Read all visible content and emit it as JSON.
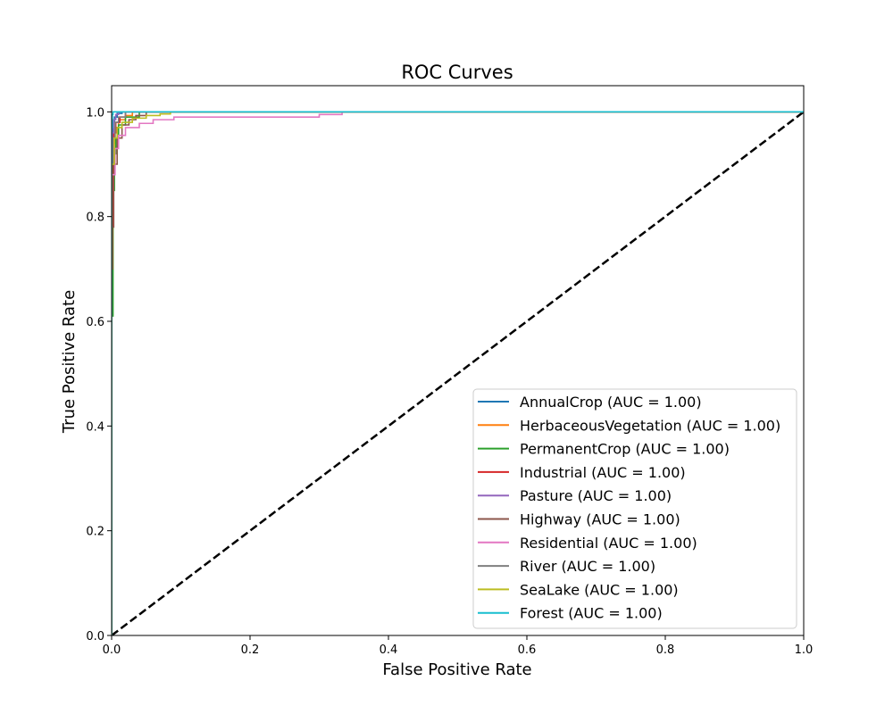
{
  "chart_data": {
    "type": "line",
    "title": "ROC Curves",
    "xlabel": "False Positive Rate",
    "ylabel": "True Positive Rate",
    "xlim": [
      0.0,
      1.0
    ],
    "ylim": [
      0.0,
      1.05
    ],
    "xticks": [
      0.0,
      0.2,
      0.4,
      0.6,
      0.8,
      1.0
    ],
    "yticks": [
      0.0,
      0.2,
      0.4,
      0.6,
      0.8,
      1.0
    ],
    "tick_labels_x": [
      "0.0",
      "0.2",
      "0.4",
      "0.6",
      "0.8",
      "1.0"
    ],
    "tick_labels_y": [
      "0.0",
      "0.2",
      "0.4",
      "0.6",
      "0.8",
      "1.0"
    ],
    "grid": false,
    "legend_position": "lower-right",
    "diagonal": {
      "x": [
        0,
        1
      ],
      "y": [
        0,
        1
      ],
      "color": "#000000",
      "style": "dashed"
    },
    "series": [
      {
        "name": "AnnualCrop (AUC = 1.00)",
        "color": "#1f77b4",
        "x": [
          0,
          0,
          0.001,
          0.002,
          0.004,
          0.008,
          0.015,
          1.0
        ],
        "y": [
          0,
          0.85,
          0.95,
          0.98,
          0.99,
          0.997,
          1.0,
          1.0
        ]
      },
      {
        "name": "HerbaceousVegetation (AUC = 1.00)",
        "color": "#ff7f0e",
        "x": [
          0,
          0,
          0.002,
          0.005,
          0.01,
          0.02,
          0.03,
          1.0
        ],
        "y": [
          0,
          0.88,
          0.94,
          0.97,
          0.985,
          0.993,
          1.0,
          1.0
        ]
      },
      {
        "name": "PermanentCrop (AUC = 1.00)",
        "color": "#2ca02c",
        "x": [
          0,
          0,
          0.002,
          0.004,
          0.006,
          0.01,
          0.02,
          0.04,
          1.0
        ],
        "y": [
          0,
          0.61,
          0.85,
          0.92,
          0.95,
          0.975,
          0.99,
          1.0,
          1.0
        ]
      },
      {
        "name": "Industrial (AUC = 1.00)",
        "color": "#d62728",
        "x": [
          0,
          0,
          0.001,
          0.003,
          0.006,
          0.012,
          0.02,
          1.0
        ],
        "y": [
          0,
          0.7,
          0.9,
          0.96,
          0.98,
          0.99,
          1.0,
          1.0
        ]
      },
      {
        "name": "Pasture (AUC = 1.00)",
        "color": "#9467bd",
        "x": [
          0,
          0,
          0.001,
          0.003,
          0.006,
          0.01,
          1.0
        ],
        "y": [
          0,
          0.9,
          0.96,
          0.985,
          0.995,
          1.0,
          1.0
        ]
      },
      {
        "name": "Highway (AUC = 1.00)",
        "color": "#8c564b",
        "x": [
          0,
          0,
          0.003,
          0.008,
          0.015,
          0.025,
          0.035,
          0.05,
          1.0
        ],
        "y": [
          0,
          0.78,
          0.9,
          0.95,
          0.975,
          0.985,
          0.993,
          1.0,
          1.0
        ]
      },
      {
        "name": "Residential (AUC = 1.00)",
        "color": "#e377c2",
        "x": [
          0,
          0,
          0.005,
          0.01,
          0.02,
          0.04,
          0.06,
          0.09,
          0.3,
          0.3,
          0.333,
          0.333,
          1.0
        ],
        "y": [
          0,
          0.88,
          0.93,
          0.955,
          0.97,
          0.978,
          0.985,
          0.99,
          0.99,
          0.995,
          0.995,
          1.0,
          1.0
        ]
      },
      {
        "name": "River (AUC = 1.00)",
        "color": "#7f7f7f",
        "x": [
          0,
          0,
          0.002,
          0.005,
          0.01,
          0.02,
          1.0
        ],
        "y": [
          0,
          0.9,
          0.95,
          0.98,
          0.99,
          1.0,
          1.0
        ]
      },
      {
        "name": "SeaLake (AUC = 1.00)",
        "color": "#bcbd22",
        "x": [
          0,
          0,
          0.004,
          0.008,
          0.015,
          0.03,
          0.05,
          0.07,
          0.085,
          1.0
        ],
        "y": [
          0,
          0.9,
          0.95,
          0.97,
          0.98,
          0.988,
          0.993,
          0.996,
          1.0,
          1.0
        ]
      },
      {
        "name": "Forest (AUC = 1.00)",
        "color": "#17becf",
        "x": [
          0,
          0,
          0.001,
          0.002,
          1.0
        ],
        "y": [
          0,
          0.97,
          0.995,
          1.0,
          1.0
        ]
      }
    ]
  }
}
